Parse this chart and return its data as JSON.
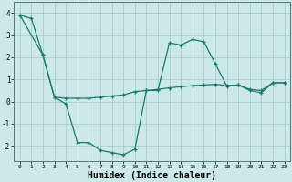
{
  "line1_x": [
    0,
    1,
    2,
    3,
    4,
    5,
    6,
    7,
    8,
    9,
    10,
    11,
    12,
    13,
    14,
    15,
    16,
    17,
    18,
    19,
    20,
    21,
    22,
    23
  ],
  "line1_y": [
    3.9,
    3.75,
    2.1,
    0.2,
    -0.1,
    -1.85,
    -1.85,
    -2.2,
    -2.3,
    -2.4,
    -2.15,
    0.5,
    0.5,
    2.65,
    2.55,
    2.8,
    2.7,
    1.7,
    0.7,
    0.75,
    0.5,
    0.4,
    0.85,
    0.85
  ],
  "line2_x": [
    0,
    2,
    3,
    4,
    5,
    6,
    7,
    8,
    9,
    10,
    11,
    12,
    13,
    14,
    15,
    16,
    17,
    18,
    19,
    20,
    21,
    22,
    23
  ],
  "line2_y": [
    3.9,
    2.1,
    0.2,
    0.15,
    0.15,
    0.15,
    0.2,
    0.25,
    0.3,
    0.45,
    0.5,
    0.55,
    0.62,
    0.67,
    0.72,
    0.75,
    0.78,
    0.72,
    0.75,
    0.55,
    0.5,
    0.85,
    0.85
  ],
  "line_color": "#1a7a6e",
  "bg_color": "#cce8e8",
  "grid_color": "#aacccc",
  "xlabel": "Humidex (Indice chaleur)",
  "xlabel_fontsize": 7,
  "xlim": [
    -0.5,
    23.5
  ],
  "ylim": [
    -2.7,
    4.5
  ],
  "yticks": [
    -2,
    -1,
    0,
    1,
    2,
    3,
    4
  ],
  "xticks": [
    0,
    1,
    2,
    3,
    4,
    5,
    6,
    7,
    8,
    9,
    10,
    11,
    12,
    13,
    14,
    15,
    16,
    17,
    18,
    19,
    20,
    21,
    22,
    23
  ]
}
